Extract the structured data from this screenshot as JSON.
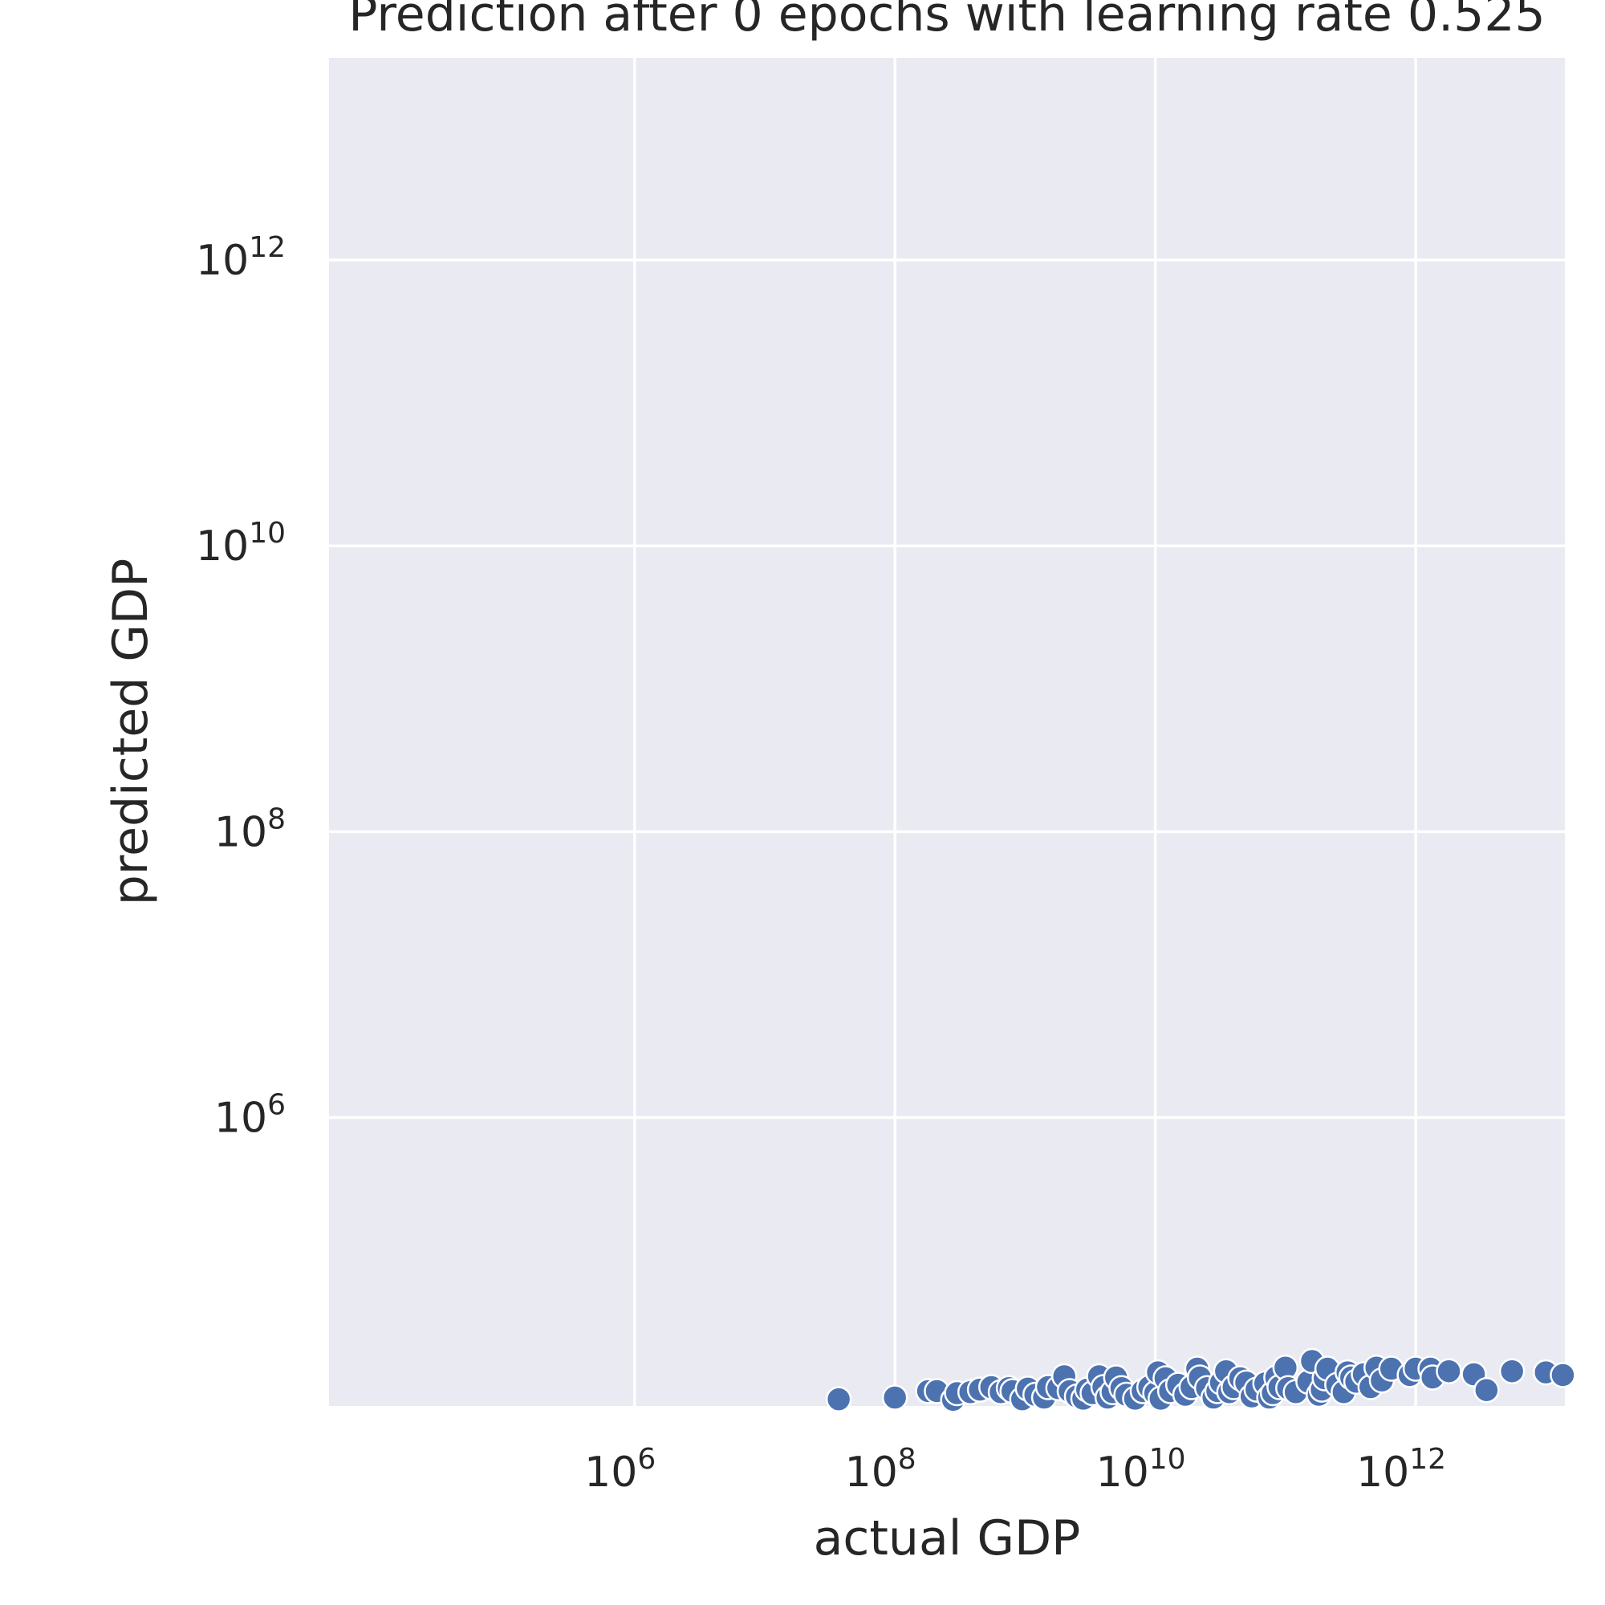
{
  "chart_data": {
    "type": "scatter",
    "title": "Prediction after 0 epochs with learning rate 0.525",
    "xlabel": "actual GDP",
    "ylabel": "predicted GDP",
    "xscale": "log",
    "yscale": "log",
    "xlim": [
      4500.0,
      14000000000000.0
    ],
    "ylim": [
      9600.0,
      26000000000000.0
    ],
    "grid": true,
    "xticks": [
      {
        "value": 1000000.0,
        "base": "10",
        "exp": "6"
      },
      {
        "value": 100000000.0,
        "base": "10",
        "exp": "8"
      },
      {
        "value": 10000000000.0,
        "base": "10",
        "exp": "10"
      },
      {
        "value": 1000000000000.0,
        "base": "10",
        "exp": "12"
      }
    ],
    "yticks": [
      {
        "value": 1000000.0,
        "base": "10",
        "exp": "6"
      },
      {
        "value": 100000000.0,
        "base": "10",
        "exp": "8"
      },
      {
        "value": 10000000000.0,
        "base": "10",
        "exp": "10"
      },
      {
        "value": 1000000000000.0,
        "base": "10",
        "exp": "12"
      }
    ],
    "color": "#4c72b0",
    "points": [
      [
        37000000.0,
        10700.0
      ],
      [
        100000000.0,
        11000.0
      ],
      [
        180000000.0,
        12200.0
      ],
      [
        210000000.0,
        12200.0
      ],
      [
        280000000.0,
        10600.0
      ],
      [
        300000000.0,
        11800.0
      ],
      [
        380000000.0,
        12000.0
      ],
      [
        450000000.0,
        12500.0
      ],
      [
        550000000.0,
        13000.0
      ],
      [
        650000000.0,
        12000.0
      ],
      [
        750000000.0,
        12800.0
      ],
      [
        800000000.0,
        12200.0
      ],
      [
        950000000.0,
        10700.0
      ],
      [
        1050000000.0,
        12700.0
      ],
      [
        1200000000.0,
        11500.0
      ],
      [
        1400000000.0,
        11000.0
      ],
      [
        1500000000.0,
        13000.0
      ],
      [
        1800000000.0,
        12800.0
      ],
      [
        2000000000.0,
        15500.0
      ],
      [
        2200000000.0,
        12200.0
      ],
      [
        2500000000.0,
        11200.0
      ],
      [
        2800000000.0,
        10800.0
      ],
      [
        3000000000.0,
        12500.0
      ],
      [
        3300000000.0,
        11800.0
      ],
      [
        3700000000.0,
        15500.0
      ],
      [
        4000000000.0,
        13000.0
      ],
      [
        4300000000.0,
        11000.0
      ],
      [
        4700000000.0,
        12000.0
      ],
      [
        5000000000.0,
        15200.0
      ],
      [
        5500000000.0,
        12800.0
      ],
      [
        6000000000.0,
        11500.0
      ],
      [
        7000000000.0,
        10800.0
      ],
      [
        8000000000.0,
        12200.0
      ],
      [
        9000000000.0,
        13000.0
      ],
      [
        10000000000.0,
        11800.0
      ],
      [
        10500000000.0,
        16500.0
      ],
      [
        11000000000.0,
        10800.0
      ],
      [
        12000000000.0,
        15000.0
      ],
      [
        13000000000.0,
        12200.0
      ],
      [
        15000000000.0,
        13500.0
      ],
      [
        17000000000.0,
        11500.0
      ],
      [
        19000000000.0,
        13000.0
      ],
      [
        21000000000.0,
        17500.0
      ],
      [
        22000000000.0,
        15200.0
      ],
      [
        25000000000.0,
        12800.0
      ],
      [
        28000000000.0,
        11000.0
      ],
      [
        30000000000.0,
        12200.0
      ],
      [
        32000000000.0,
        14000.0
      ],
      [
        35000000000.0,
        16800.0
      ],
      [
        37000000000.0,
        12000.0
      ],
      [
        40000000000.0,
        13000.0
      ],
      [
        45000000000.0,
        15000.0
      ],
      [
        50000000000.0,
        14000.0
      ],
      [
        55000000000.0,
        11200.0
      ],
      [
        60000000000.0,
        12500.0
      ],
      [
        70000000000.0,
        13800.0
      ],
      [
        75000000000.0,
        11000.0
      ],
      [
        80000000000.0,
        11800.0
      ],
      [
        85000000000.0,
        15200.0
      ],
      [
        90000000000.0,
        13000.0
      ],
      [
        100000000000.0,
        17800.0
      ],
      [
        105000000000.0,
        12800.0
      ],
      [
        120000000000.0,
        12000.0
      ],
      [
        150000000000.0,
        14200.0
      ],
      [
        160000000000.0,
        19800.0
      ],
      [
        180000000000.0,
        11500.0
      ],
      [
        190000000000.0,
        12500.0
      ],
      [
        200000000000.0,
        15000.0
      ],
      [
        210000000000.0,
        17500.0
      ],
      [
        250000000000.0,
        13500.0
      ],
      [
        280000000000.0,
        12000.0
      ],
      [
        300000000000.0,
        16500.0
      ],
      [
        320000000000.0,
        15200.0
      ],
      [
        350000000000.0,
        14200.0
      ],
      [
        400000000000.0,
        16000.0
      ],
      [
        450000000000.0,
        13000.0
      ],
      [
        500000000000.0,
        17800.0
      ],
      [
        550000000000.0,
        14500.0
      ],
      [
        650000000000.0,
        17500.0
      ],
      [
        900000000000.0,
        15800.0
      ],
      [
        1000000000000.0,
        17500.0
      ],
      [
        1300000000000.0,
        17500.0
      ],
      [
        1350000000000.0,
        15200.0
      ],
      [
        1800000000000.0,
        16800.0
      ],
      [
        2800000000000.0,
        16000.0
      ],
      [
        3500000000000.0,
        12400.0
      ],
      [
        5500000000000.0,
        16800.0
      ],
      [
        10000000000000.0,
        16500.0
      ],
      [
        13500000000000.0,
        15800.0
      ]
    ]
  }
}
